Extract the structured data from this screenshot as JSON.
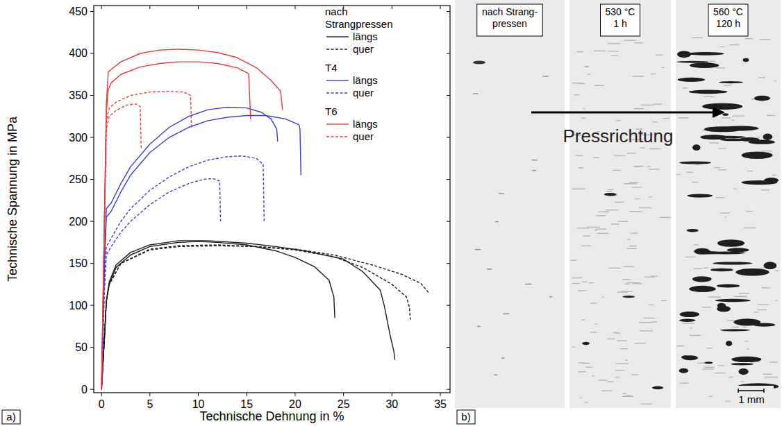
{
  "chart_data": {
    "type": "line",
    "x_label": "Technische Dehnung in %",
    "y_label": "Technische Spannung in MPa",
    "xlim": [
      -0.8,
      36
    ],
    "ylim": [
      -4,
      457
    ],
    "xticks": [
      0,
      5,
      10,
      15,
      20,
      25,
      30,
      35
    ],
    "yticks": [
      0,
      50,
      100,
      150,
      200,
      250,
      300,
      350,
      400,
      450
    ],
    "grid": false,
    "legend": "top-right",
    "series": [
      {
        "group": "nach Strangpressen",
        "name": "längs",
        "color": "#1a1a1a",
        "line_style": "solid",
        "x": [
          0,
          0.3,
          0.5,
          0.8,
          1.5,
          3,
          5,
          8,
          10,
          12,
          15,
          18,
          20,
          22,
          23.5,
          24,
          24.1
        ],
        "values": [
          0,
          60,
          105,
          125,
          145,
          160,
          170,
          175,
          176,
          175,
          172,
          165,
          157,
          146,
          130,
          110,
          85
        ]
      },
      {
        "group": "nach Strangpressen",
        "name": "längs",
        "color": "#1a1a1a",
        "line_style": "solid",
        "x": [
          0,
          0.3,
          0.5,
          0.8,
          1.5,
          3,
          5,
          8,
          11,
          15,
          18,
          21,
          25,
          27,
          28.8,
          29.2,
          29.8,
          30.2,
          30.3
        ],
        "values": [
          0,
          60,
          105,
          128,
          148,
          163,
          172,
          177,
          177,
          174,
          170,
          165,
          155,
          140,
          118,
          100,
          65,
          45,
          35
        ]
      },
      {
        "group": "nach Strangpressen",
        "name": "quer",
        "color": "#1a1a1a",
        "line_style": "dashed",
        "x": [
          0,
          0.3,
          0.5,
          0.8,
          2,
          5,
          8,
          12,
          16,
          20,
          24,
          27,
          30,
          31.5,
          31.8,
          31.9
        ],
        "values": [
          0,
          60,
          105,
          125,
          150,
          167,
          171,
          172,
          170,
          166,
          158,
          145,
          125,
          110,
          98,
          83
        ]
      },
      {
        "group": "nach Strangpressen",
        "name": "quer",
        "color": "#1a1a1a",
        "line_style": "dashed",
        "x": [
          0,
          0.3,
          0.5,
          0.8,
          2,
          5,
          8,
          12,
          16,
          20,
          24,
          28,
          31,
          33,
          33.8
        ],
        "values": [
          0,
          60,
          105,
          125,
          150,
          166,
          170,
          171,
          170,
          167,
          160,
          148,
          137,
          126,
          115
        ]
      },
      {
        "group": "T4",
        "name": "längs",
        "color": "#3c3cd2",
        "line_style": "solid",
        "x": [
          0,
          0.3,
          0.5,
          1,
          2,
          3,
          5,
          7,
          9,
          11,
          13,
          15,
          16.5,
          17.5,
          18.1,
          18.2
        ],
        "values": [
          0,
          150,
          215,
          222,
          245,
          265,
          292,
          312,
          325,
          333,
          336,
          335,
          330,
          322,
          310,
          295
        ]
      },
      {
        "group": "T4",
        "name": "längs",
        "color": "#3c3cd2",
        "line_style": "solid",
        "x": [
          0,
          0.3,
          0.5,
          1,
          2,
          3,
          5,
          7,
          9,
          11,
          13,
          15,
          17,
          19,
          20.4,
          20.5,
          20.6
        ],
        "values": [
          0,
          150,
          205,
          212,
          235,
          255,
          282,
          300,
          312,
          320,
          324,
          326,
          326,
          322,
          315,
          310,
          255
        ]
      },
      {
        "group": "T4",
        "name": "quer",
        "color": "#3c3cd2",
        "line_style": "dashed",
        "x": [
          0,
          0.3,
          0.5,
          1,
          2,
          3,
          5,
          7,
          9,
          11,
          13,
          14.5,
          16,
          16.7,
          16.8
        ],
        "values": [
          0,
          120,
          170,
          180,
          200,
          215,
          237,
          253,
          265,
          273,
          277,
          278,
          275,
          268,
          200
        ]
      },
      {
        "group": "T4",
        "name": "quer",
        "color": "#3c3cd2",
        "line_style": "dashed",
        "x": [
          0,
          0.3,
          0.5,
          1,
          2,
          3,
          5,
          7,
          9,
          10.5,
          11.5,
          12.2,
          12.3
        ],
        "values": [
          0,
          120,
          160,
          170,
          187,
          200,
          220,
          235,
          245,
          250,
          251,
          248,
          200
        ]
      },
      {
        "group": "T6",
        "name": "längs",
        "color": "#e23c3c",
        "line_style": "solid",
        "x": [
          0,
          0.3,
          0.5,
          0.7,
          1,
          2,
          4,
          6,
          8,
          10,
          12,
          14,
          16,
          17.5,
          18.5,
          18.7
        ],
        "values": [
          0,
          200,
          340,
          378,
          381,
          390,
          400,
          404,
          405,
          404,
          401,
          395,
          383,
          368,
          355,
          333
        ]
      },
      {
        "group": "T6",
        "name": "längs",
        "color": "#e23c3c",
        "line_style": "solid",
        "x": [
          0,
          0.3,
          0.5,
          0.7,
          1,
          2,
          4,
          6,
          8,
          10,
          12,
          14,
          15.2,
          15.4
        ],
        "values": [
          0,
          200,
          330,
          357,
          365,
          375,
          384,
          388,
          390,
          390,
          388,
          383,
          376,
          322
        ]
      },
      {
        "group": "T6",
        "name": "quer",
        "color": "#e23c3c",
        "line_style": "dashed",
        "x": [
          0,
          0.3,
          0.5,
          0.8,
          1.5,
          3,
          5,
          7,
          8.5,
          9.2,
          9.3
        ],
        "values": [
          0,
          200,
          320,
          335,
          342,
          350,
          354,
          355,
          354,
          350,
          310
        ]
      },
      {
        "group": "T6",
        "name": "quer",
        "color": "#e23c3c",
        "line_style": "dashed",
        "x": [
          0,
          0.3,
          0.5,
          0.8,
          1.5,
          2.5,
          3.5,
          4,
          4.1
        ],
        "values": [
          0,
          200,
          310,
          325,
          332,
          338,
          340,
          337,
          287
        ]
      }
    ]
  },
  "micrographs": {
    "images": [
      {
        "label": [
          "nach Strang-",
          "pressen"
        ]
      },
      {
        "label": [
          "530 °C",
          "1 h"
        ]
      },
      {
        "label": [
          "560 °C",
          "120 h"
        ]
      }
    ],
    "direction_label": "Pressrichtung",
    "scale_bar": "1 mm"
  },
  "panel_labels": [
    "a)",
    "b)"
  ]
}
